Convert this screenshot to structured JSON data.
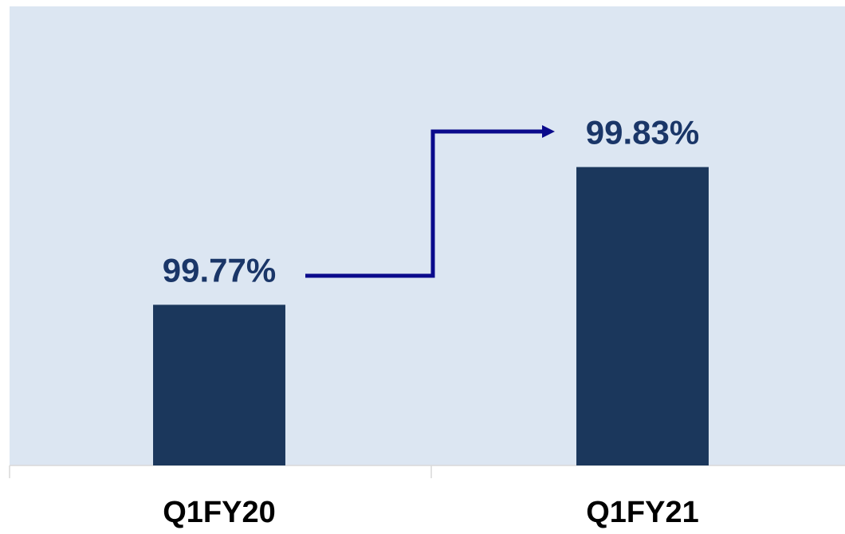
{
  "chart_data": {
    "type": "bar",
    "categories": [
      "Q1FY20",
      "Q1FY21"
    ],
    "values": [
      99.77,
      99.83
    ],
    "value_labels": [
      "99.77%",
      "99.83%"
    ],
    "color": "#1b375c",
    "ylim": [
      99.7,
      99.9
    ]
  }
}
